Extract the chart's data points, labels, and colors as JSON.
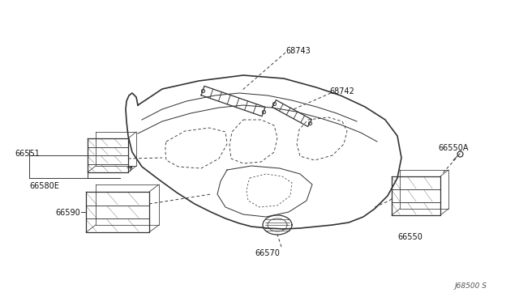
{
  "bg_color": "#ffffff",
  "fig_width": 6.4,
  "fig_height": 3.72,
  "dpi": 100,
  "diagram_code": "J68500 S",
  "line_color": "#333333",
  "label_color": "#111111",
  "label_fontsize": 7.0,
  "code_fontsize": 6.5
}
